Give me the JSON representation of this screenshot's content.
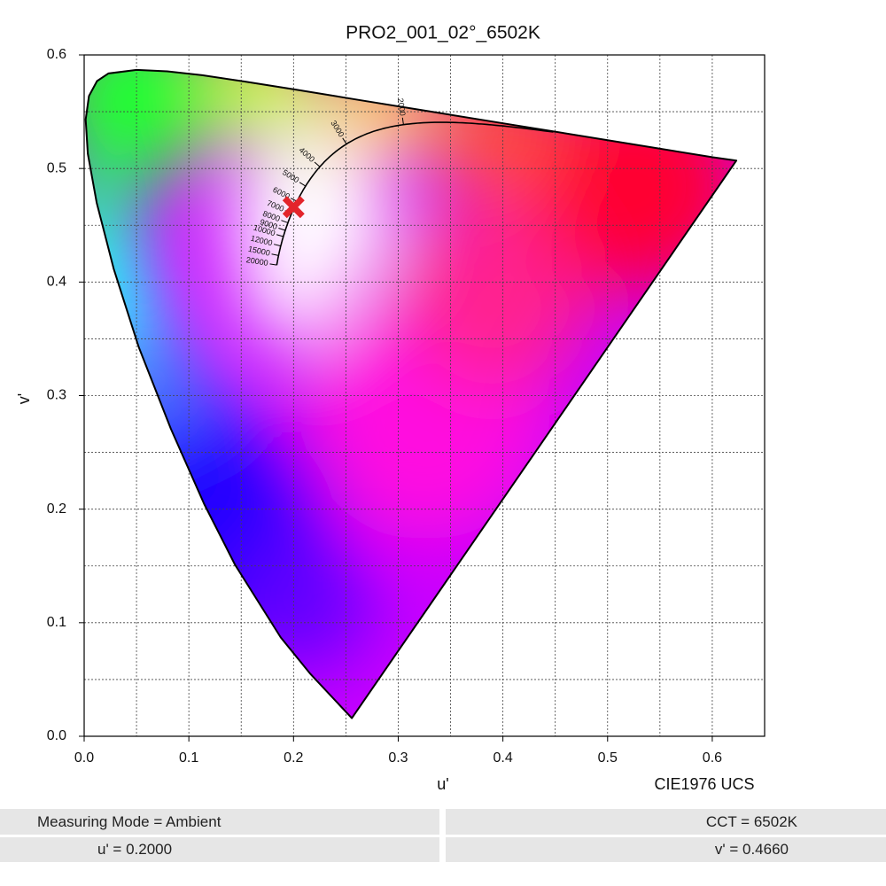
{
  "chart_data": {
    "type": "scatter",
    "title": "PRO2_001_02°_6502K",
    "x_label": "u'",
    "y_label": "v'",
    "annotation": "CIE1976 UCS",
    "xlim": [
      0,
      0.65
    ],
    "ylim": [
      0,
      0.6
    ],
    "xticks": [
      {
        "value": 0,
        "label": "0.0"
      },
      0.1,
      0.2,
      0.3,
      0.4,
      0.5,
      0.6
    ],
    "yticks": [
      {
        "value": 0,
        "label": "0.0"
      },
      0.1,
      0.2,
      0.3,
      0.4,
      0.5,
      0.6
    ],
    "minor_xticks": [
      0.05,
      0.15,
      0.25,
      0.35,
      0.45,
      0.55
    ],
    "minor_yticks": [
      0.05,
      0.15,
      0.25,
      0.35,
      0.45,
      0.55
    ],
    "grid": true,
    "locus_u": [
      0.2557,
      0.2161,
      0.1877,
      0.1441,
      0.1147,
      0.0828,
      0.0521,
      0.0282,
      0.0119,
      0.0035,
      0.0014,
      0.0046,
      0.0123,
      0.0231,
      0.0501,
      0.0792,
      0.1127,
      0.1531,
      0.2026,
      0.2623,
      0.3315,
      0.4035,
      0.5203,
      0.6005,
      0.623
    ],
    "locus_v": [
      0.0159,
      0.0549,
      0.0871,
      0.151,
      0.2044,
      0.2708,
      0.3427,
      0.4117,
      0.4699,
      0.5131,
      0.5431,
      0.5638,
      0.577,
      0.5837,
      0.5868,
      0.5856,
      0.5821,
      0.5766,
      0.5694,
      0.5604,
      0.5501,
      0.5393,
      0.5219,
      0.5099,
      0.507
    ],
    "cct_labels": [
      20000,
      15000,
      12000,
      10000,
      9000,
      8000,
      7000,
      6000,
      5000,
      4000,
      3000,
      2000
    ],
    "points": {
      "x": [
        0.2
      ],
      "values": [
        0.466
      ],
      "color": "#e3242b"
    }
  },
  "footer": {
    "rows": [
      [
        "Measuring Mode = Ambient",
        "CCT = 6502K"
      ],
      [
        "u' = 0.2000",
        "v' = 0.4660"
      ]
    ]
  }
}
